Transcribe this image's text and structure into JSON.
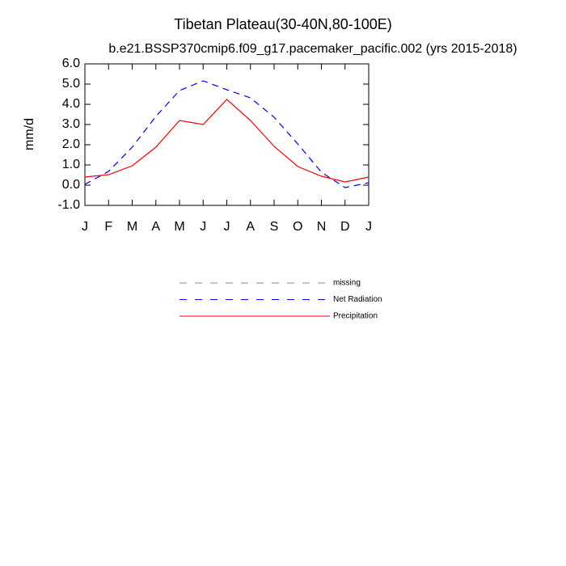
{
  "chart_data": {
    "type": "line",
    "title": "Tibetan Plateau(30-40N,80-100E)",
    "subtitle": "b.e21.BSSP370cmip6.f09_g17.pacemaker_pacific.002 (yrs 2015-2018)",
    "y_label": "mm/d",
    "categories": [
      "J",
      "F",
      "M",
      "A",
      "M",
      "J",
      "J",
      "A",
      "S",
      "O",
      "N",
      "D",
      "J"
    ],
    "ylim": [
      -1,
      6
    ],
    "yticks": [
      {
        "value": 6,
        "label": "6.0"
      },
      {
        "value": 5,
        "label": "5.0"
      },
      {
        "value": 4,
        "label": "4.0"
      },
      {
        "value": 3,
        "label": "3.0"
      },
      {
        "value": 2,
        "label": "2.0"
      },
      {
        "value": 1,
        "label": "1.0"
      },
      {
        "value": 0,
        "label": "0.0"
      },
      {
        "value": -1,
        "label": "-1.0"
      }
    ],
    "series": [
      {
        "name": "missing",
        "color": "#888888",
        "dash": true,
        "values": [
          null,
          null,
          null,
          null,
          null,
          null,
          null,
          null,
          null,
          null,
          null,
          null,
          null
        ]
      },
      {
        "name": "Net Radiation",
        "color": "#0000ff",
        "dash": true,
        "values": [
          0.04,
          0.68,
          1.88,
          3.4,
          4.68,
          5.16,
          4.72,
          4.32,
          3.36,
          2.04,
          0.64,
          -0.12,
          0.12
        ]
      },
      {
        "name": "Precipitation",
        "color": "#ff0000",
        "dash": false,
        "values": [
          0.4,
          0.52,
          0.96,
          1.88,
          3.2,
          3.0,
          4.24,
          3.2,
          1.92,
          0.92,
          0.44,
          0.16,
          0.4
        ]
      }
    ]
  }
}
